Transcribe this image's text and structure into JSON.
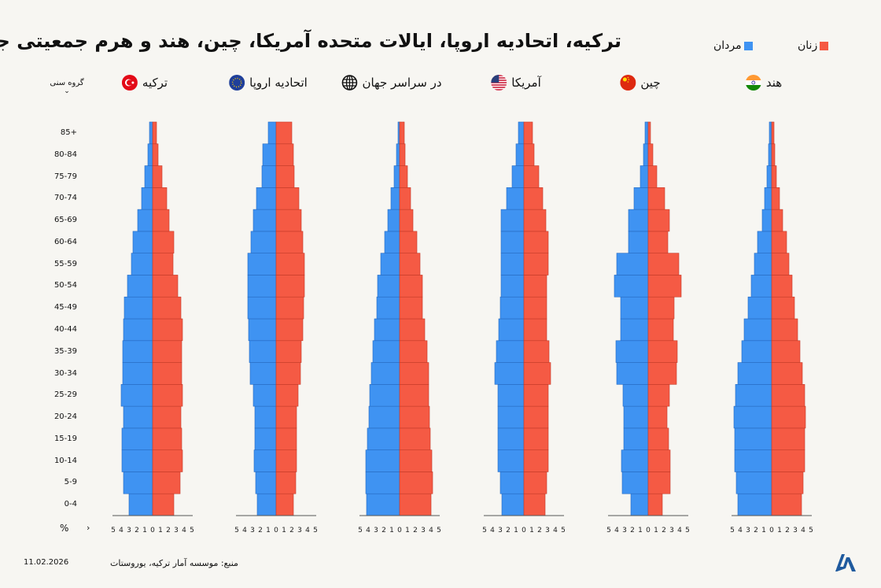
{
  "title": "ترکیه، اتحادیه اروپا، ایالات متحده آمریکا، چین، هند و هرم جمعیتی جهان",
  "legend": {
    "female": "زنان",
    "male": "مردان"
  },
  "colors": {
    "female": "#f55a44",
    "male": "#3f93f2",
    "female_edge": "#c23a28",
    "male_edge": "#2569c0"
  },
  "age_group_label": "گروه سنی",
  "percent_label": "%",
  "footer": {
    "date": "11.02.2026",
    "source": "منبع: موسسه آمار ترکیه، یوروستات"
  },
  "chart_data": [
    {
      "type": "bar",
      "name": "ترکیه",
      "icon": "turkey-flag-icon",
      "categories": [
        "0-4",
        "5-9",
        "10-14",
        "15-19",
        "20-24",
        "25-29",
        "30-34",
        "35-39",
        "40-44",
        "45-49",
        "50-54",
        "55-59",
        "60-64",
        "65-69",
        "70-74",
        "75-79",
        "80-84",
        "85+"
      ],
      "series": [
        {
          "name": "مردان",
          "values": [
            3.0,
            3.7,
            3.9,
            3.9,
            3.7,
            4.0,
            3.8,
            3.8,
            3.7,
            3.6,
            3.2,
            2.7,
            2.5,
            1.9,
            1.4,
            1.0,
            0.6,
            0.4
          ]
        },
        {
          "name": "زنان",
          "values": [
            2.7,
            3.5,
            3.8,
            3.7,
            3.6,
            3.8,
            3.7,
            3.7,
            3.8,
            3.6,
            3.2,
            2.6,
            2.7,
            2.1,
            1.8,
            1.2,
            0.7,
            0.5
          ]
        }
      ],
      "xticks": [
        5,
        4,
        3,
        2,
        1,
        0,
        1,
        2,
        3,
        4,
        5
      ],
      "xlim": [
        -5,
        5
      ]
    },
    {
      "type": "bar",
      "name": "اتحادیه اروپا",
      "icon": "eu-flag-icon",
      "series": [
        {
          "name": "مردان",
          "values": [
            2.4,
            2.6,
            2.8,
            2.7,
            2.7,
            2.9,
            3.3,
            3.4,
            3.5,
            3.6,
            3.6,
            3.6,
            3.2,
            2.9,
            2.5,
            1.8,
            1.7,
            1.0
          ]
        },
        {
          "name": "زنان",
          "values": [
            2.2,
            2.5,
            2.6,
            2.6,
            2.6,
            2.8,
            3.1,
            3.2,
            3.4,
            3.5,
            3.6,
            3.6,
            3.4,
            3.2,
            2.9,
            2.3,
            2.2,
            2.0
          ]
        }
      ]
    },
    {
      "type": "bar",
      "name": "در سراسر جهان",
      "icon": "globe-icon",
      "series": [
        {
          "name": "مردان",
          "values": [
            4.2,
            4.3,
            4.3,
            4.1,
            3.9,
            3.8,
            3.6,
            3.4,
            3.2,
            2.9,
            2.8,
            2.4,
            1.9,
            1.5,
            1.1,
            0.7,
            0.4,
            0.2
          ]
        },
        {
          "name": "زنان",
          "values": [
            4.0,
            4.2,
            4.1,
            3.9,
            3.8,
            3.7,
            3.7,
            3.5,
            3.2,
            2.9,
            2.9,
            2.6,
            2.2,
            1.7,
            1.4,
            1.0,
            0.7,
            0.6
          ]
        }
      ]
    },
    {
      "type": "bar",
      "name": "آمریکا",
      "icon": "usa-flag-icon",
      "series": [
        {
          "name": "مردان",
          "values": [
            2.8,
            3.0,
            3.3,
            3.3,
            3.3,
            3.3,
            3.7,
            3.5,
            3.2,
            3.0,
            2.9,
            2.9,
            2.9,
            2.9,
            2.2,
            1.5,
            1.0,
            0.7
          ]
        },
        {
          "name": "زنان",
          "values": [
            2.7,
            2.9,
            3.1,
            3.1,
            3.1,
            3.1,
            3.4,
            3.2,
            2.9,
            2.9,
            2.9,
            3.1,
            3.1,
            2.8,
            2.4,
            1.9,
            1.3,
            1.1
          ]
        }
      ]
    },
    {
      "type": "bar",
      "name": "چین",
      "icon": "china-flag-icon",
      "series": [
        {
          "name": "مردان",
          "values": [
            2.2,
            3.3,
            3.4,
            3.1,
            3.1,
            3.2,
            4.0,
            4.1,
            3.5,
            3.5,
            4.3,
            4.0,
            2.5,
            2.5,
            1.8,
            1.0,
            0.6,
            0.4
          ]
        },
        {
          "name": "زنان",
          "values": [
            1.8,
            2.8,
            2.8,
            2.6,
            2.4,
            2.7,
            3.6,
            3.7,
            3.2,
            3.3,
            4.2,
            3.9,
            2.5,
            2.7,
            2.1,
            1.1,
            0.6,
            0.3
          ]
        }
      ]
    },
    {
      "type": "bar",
      "name": "هند",
      "icon": "india-flag-icon",
      "series": [
        {
          "name": "مردان",
          "values": [
            4.3,
            4.5,
            4.7,
            4.7,
            4.8,
            4.6,
            4.3,
            3.8,
            3.5,
            3.0,
            2.6,
            2.2,
            1.8,
            1.2,
            0.9,
            0.6,
            0.4,
            0.3
          ]
        },
        {
          "name": "زنان",
          "values": [
            3.8,
            4.0,
            4.2,
            4.2,
            4.3,
            4.2,
            3.9,
            3.6,
            3.3,
            2.9,
            2.6,
            2.2,
            1.9,
            1.4,
            1.0,
            0.6,
            0.4,
            0.3
          ]
        }
      ]
    }
  ]
}
